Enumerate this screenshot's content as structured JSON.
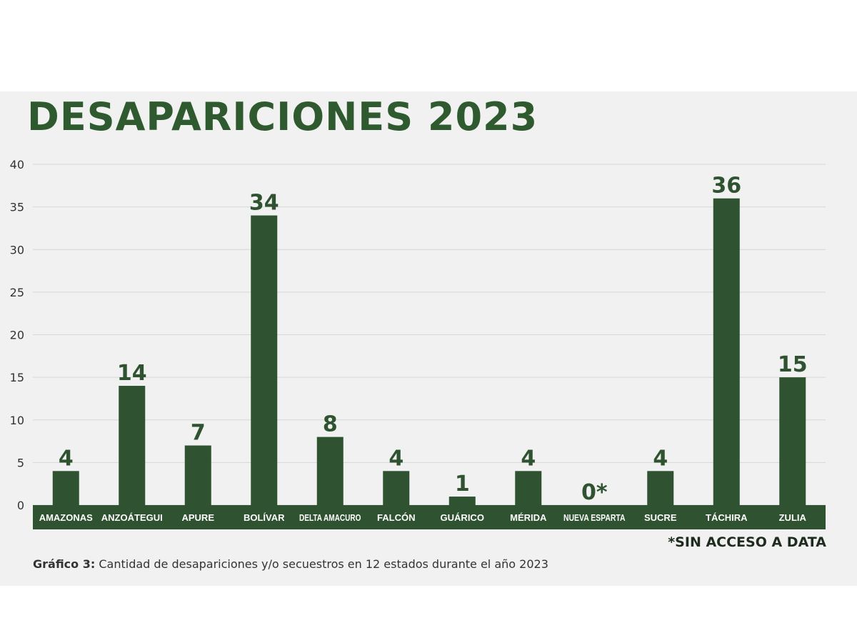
{
  "chart_data": {
    "type": "bar",
    "title": "DESAPARICIONES 2023",
    "categories": [
      "AMAZONAS",
      "ANZOÁTEGUI",
      "APURE",
      "BOLÍVAR",
      "DELTA AMACURO",
      "FALCÓN",
      "GUÁRICO",
      "MÉRIDA",
      "NUEVA ESPARTA",
      "SUCRE",
      "TÁCHIRA",
      "ZULIA"
    ],
    "values": [
      4,
      14,
      7,
      34,
      8,
      4,
      1,
      4,
      0,
      4,
      36,
      15
    ],
    "data_labels": [
      "4",
      "14",
      "7",
      "34",
      "8",
      "4",
      "1",
      "4",
      "0*",
      "4",
      "36",
      "15"
    ],
    "ylim": [
      0,
      40
    ],
    "yticks": [
      0,
      5,
      10,
      15,
      20,
      25,
      30,
      35,
      40
    ],
    "grid": true,
    "legend": "none",
    "xlabel": "",
    "ylabel": ""
  },
  "footnote": "*SIN ACCESO A DATA",
  "caption": {
    "label": "Gráfico 3:",
    "text": "Cantidad de desapariciones y/o secuestros en 12 estados durante el año 2023"
  },
  "colors": {
    "bar": "#2f5230",
    "category_band": "#2f5230",
    "title": "#2f5a30",
    "background": "#f0f1f0",
    "grid": "#d6d8d6"
  }
}
